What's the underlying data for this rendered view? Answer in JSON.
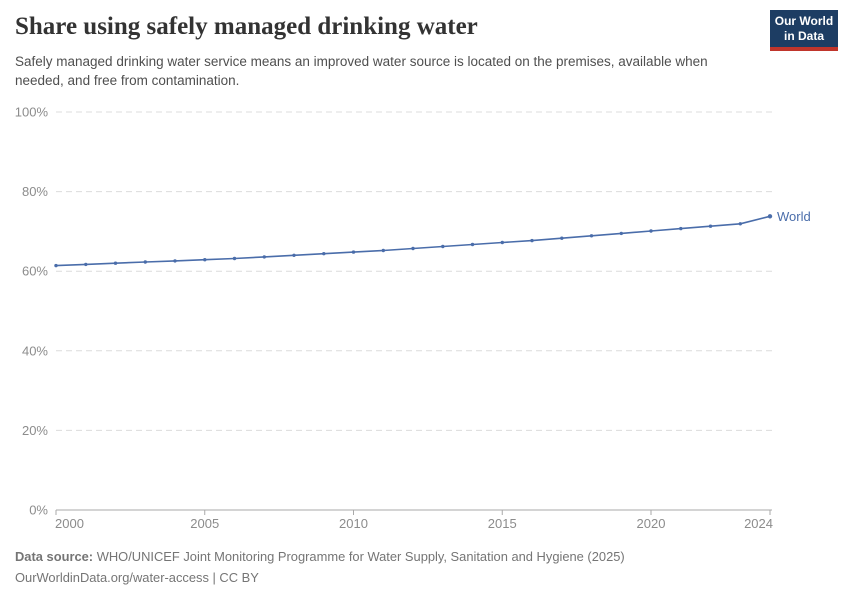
{
  "header": {
    "title": "Share using safely managed drinking water",
    "subtitle": "Safely managed drinking water service means an improved water source is located on the premises, available when needed, and free from contamination."
  },
  "logo": {
    "line1": "Our World",
    "line2": "in Data",
    "bg_color": "#1d3d63",
    "accent_color": "#c0352b"
  },
  "chart_data": {
    "type": "line",
    "title": "Share using safely managed drinking water",
    "xlabel": "",
    "ylabel": "",
    "unit": "%",
    "x": [
      2000,
      2001,
      2002,
      2003,
      2004,
      2005,
      2006,
      2007,
      2008,
      2009,
      2010,
      2011,
      2012,
      2013,
      2014,
      2015,
      2016,
      2017,
      2018,
      2019,
      2020,
      2021,
      2022,
      2023,
      2024
    ],
    "series": [
      {
        "name": "World",
        "color": "#4a6daa",
        "values": [
          61.4,
          61.7,
          62.0,
          62.3,
          62.6,
          62.9,
          63.2,
          63.6,
          64.0,
          64.4,
          64.8,
          65.2,
          65.7,
          66.2,
          66.7,
          67.2,
          67.7,
          68.3,
          68.9,
          69.5,
          70.1,
          70.7,
          71.3,
          71.9,
          73.8
        ]
      }
    ],
    "xticks": [
      2000,
      2005,
      2010,
      2015,
      2020,
      2024
    ],
    "yticks": [
      0,
      20,
      40,
      60,
      80,
      100
    ],
    "xlim": [
      2000,
      2024
    ],
    "ylim": [
      0,
      100
    ],
    "grid": "horizontal-dashed",
    "legend_position": "end-of-line",
    "axis_color": "#a9a9a9",
    "grid_color": "#dcdcdc",
    "tick_label_color": "#8c8c8c"
  },
  "footer": {
    "datasource_label": "Data source:",
    "datasource_text": "WHO/UNICEF Joint Monitoring Programme for Water Supply, Sanitation and Hygiene (2025)",
    "citation": "OurWorldinData.org/water-access | CC BY"
  }
}
